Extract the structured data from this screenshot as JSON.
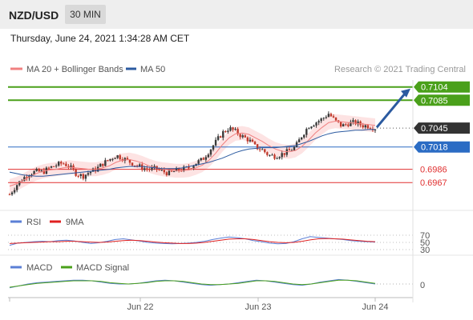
{
  "header": {
    "symbol": "NZD/USD",
    "timeframe": "30 MIN",
    "datetime": "Thursday, June 24, 2021 1:34:28 AM CET"
  },
  "legend": {
    "items": [
      {
        "label": "MA 20 + Bollinger Bands",
        "color": "#f08080"
      },
      {
        "label": "MA 50",
        "color": "#2b5aa0"
      }
    ],
    "credit": "Research © 2021 Trading Central"
  },
  "chart_data": [
    {
      "type": "candlestick",
      "ylim": [
        0.6942,
        0.7114
      ],
      "x": [
        "",
        "Jun 22",
        "Jun 23",
        "Jun 24"
      ],
      "levels": [
        {
          "value": 0.7104,
          "label": "0.7104",
          "kind": "resistance",
          "color": "#4aa01a"
        },
        {
          "value": 0.7085,
          "label": "0.7085",
          "kind": "resistance",
          "color": "#4aa01a"
        },
        {
          "value": 0.7045,
          "label": "0.7045",
          "kind": "last",
          "color": "#333333"
        },
        {
          "value": 0.7018,
          "label": "0.7018",
          "kind": "pivot",
          "color": "#2b6cc4"
        },
        {
          "value": 0.6986,
          "label": "0.6986",
          "kind": "support",
          "color": "#e03030"
        },
        {
          "value": 0.6967,
          "label": "0.6967",
          "kind": "support",
          "color": "#e03030"
        }
      ],
      "price_path": [
        0.695,
        0.6963,
        0.6973,
        0.698,
        0.6983,
        0.6982,
        0.6988,
        0.6992,
        0.6995,
        0.699,
        0.698,
        0.6976,
        0.6982,
        0.6986,
        0.6994,
        0.7,
        0.7006,
        0.7002,
        0.6997,
        0.6992,
        0.6988,
        0.6986,
        0.6987,
        0.6983,
        0.698,
        0.6984,
        0.6986,
        0.6988,
        0.6995,
        0.7,
        0.7012,
        0.7025,
        0.7038,
        0.7045,
        0.704,
        0.7033,
        0.7028,
        0.7018,
        0.7014,
        0.7006,
        0.7005,
        0.7008,
        0.7012,
        0.7018,
        0.7035,
        0.7048,
        0.7053,
        0.7058,
        0.7066,
        0.7055,
        0.7048,
        0.7052,
        0.7053,
        0.7049,
        0.7048,
        0.7045
      ],
      "ma20_path": [
        0.6962,
        0.6965,
        0.697,
        0.6975,
        0.698,
        0.6983,
        0.6985,
        0.6986,
        0.6988,
        0.6989,
        0.6988,
        0.6987,
        0.6986,
        0.6986,
        0.6988,
        0.6991,
        0.6996,
        0.6999,
        0.7,
        0.6998,
        0.6995,
        0.6991,
        0.6988,
        0.6986,
        0.6985,
        0.6984,
        0.6984,
        0.6985,
        0.6988,
        0.6992,
        0.6999,
        0.7009,
        0.7021,
        0.7031,
        0.7037,
        0.7038,
        0.7036,
        0.7031,
        0.7026,
        0.702,
        0.7015,
        0.7012,
        0.7011,
        0.7013,
        0.7019,
        0.7028,
        0.7038,
        0.7046,
        0.7053,
        0.7055,
        0.7054,
        0.7053,
        0.7052,
        0.7051,
        0.705,
        0.7049
      ],
      "ma50_path": [
        0.6982,
        0.698,
        0.6978,
        0.6977,
        0.6976,
        0.6976,
        0.6977,
        0.6978,
        0.6979,
        0.698,
        0.6981,
        0.6982,
        0.6983,
        0.6984,
        0.6985,
        0.6986,
        0.6988,
        0.6989,
        0.699,
        0.699,
        0.699,
        0.6989,
        0.6988,
        0.6987,
        0.6987,
        0.6987,
        0.6988,
        0.699,
        0.6992,
        0.6994,
        0.6996,
        0.6999,
        0.7002,
        0.7006,
        0.701,
        0.7013,
        0.7015,
        0.7016,
        0.7017,
        0.7017,
        0.7017,
        0.7018,
        0.7019,
        0.702,
        0.7023,
        0.7026,
        0.703,
        0.7034,
        0.7037,
        0.7039,
        0.704,
        0.7041,
        0.7042,
        0.7042,
        0.7043,
        0.7043
      ],
      "band_width": 0.001,
      "forecast": [
        0.7045,
        0.7104
      ]
    },
    {
      "type": "line",
      "legend": [
        {
          "label": "RSI",
          "color": "#5b7fd6"
        },
        {
          "label": "9MA",
          "color": "#e02020"
        }
      ],
      "yticks": [
        "70",
        "50",
        "30"
      ],
      "ylim": [
        0,
        100
      ],
      "rsi": [
        42,
        48,
        50,
        52,
        53,
        52,
        55,
        56,
        54,
        50,
        47,
        49,
        53,
        58,
        60,
        57,
        54,
        50,
        48,
        47,
        46,
        47,
        48,
        50,
        53,
        58,
        62,
        65,
        63,
        60,
        55,
        52,
        48,
        46,
        47,
        52,
        60,
        66,
        64,
        62,
        60,
        58,
        55,
        53,
        52,
        51
      ],
      "rsi_ma": [
        47,
        48,
        49,
        50,
        51,
        52,
        52,
        53,
        53,
        52,
        51,
        50,
        51,
        53,
        55,
        56,
        55,
        53,
        51,
        49,
        48,
        47,
        47,
        48,
        50,
        53,
        56,
        59,
        60,
        60,
        58,
        55,
        52,
        50,
        49,
        50,
        53,
        57,
        60,
        61,
        60,
        59,
        57,
        55,
        53,
        52
      ]
    },
    {
      "type": "line",
      "legend": [
        {
          "label": "MACD",
          "color": "#5b7fd6"
        },
        {
          "label": "MACD Signal",
          "color": "#4aa01a"
        }
      ],
      "yticks": [
        "0"
      ],
      "macd": [
        -6,
        -3,
        0,
        2,
        3,
        4,
        5,
        6,
        6,
        5,
        3,
        1,
        0,
        0,
        1,
        3,
        5,
        6,
        5,
        3,
        1,
        -1,
        -2,
        -1,
        0,
        2,
        4,
        6,
        5,
        3,
        1,
        -1,
        -2,
        0,
        3,
        5,
        7,
        6,
        4,
        2,
        0
      ],
      "signal": [
        -5,
        -3,
        -1,
        1,
        2,
        3,
        4,
        5,
        5,
        5,
        4,
        2,
        1,
        0,
        1,
        2,
        4,
        5,
        5,
        4,
        2,
        0,
        -1,
        -1,
        0,
        1,
        3,
        5,
        5,
        4,
        2,
        0,
        -1,
        0,
        2,
        4,
        6,
        6,
        5,
        3,
        1
      ]
    }
  ],
  "xaxis": {
    "labels": [
      "Jun 22",
      "Jun 23",
      "Jun 24"
    ]
  },
  "panels": {
    "rsi_title": "RSI",
    "rsi_ma_title": "9MA",
    "macd_title": "MACD",
    "signal_title": "MACD Signal"
  }
}
